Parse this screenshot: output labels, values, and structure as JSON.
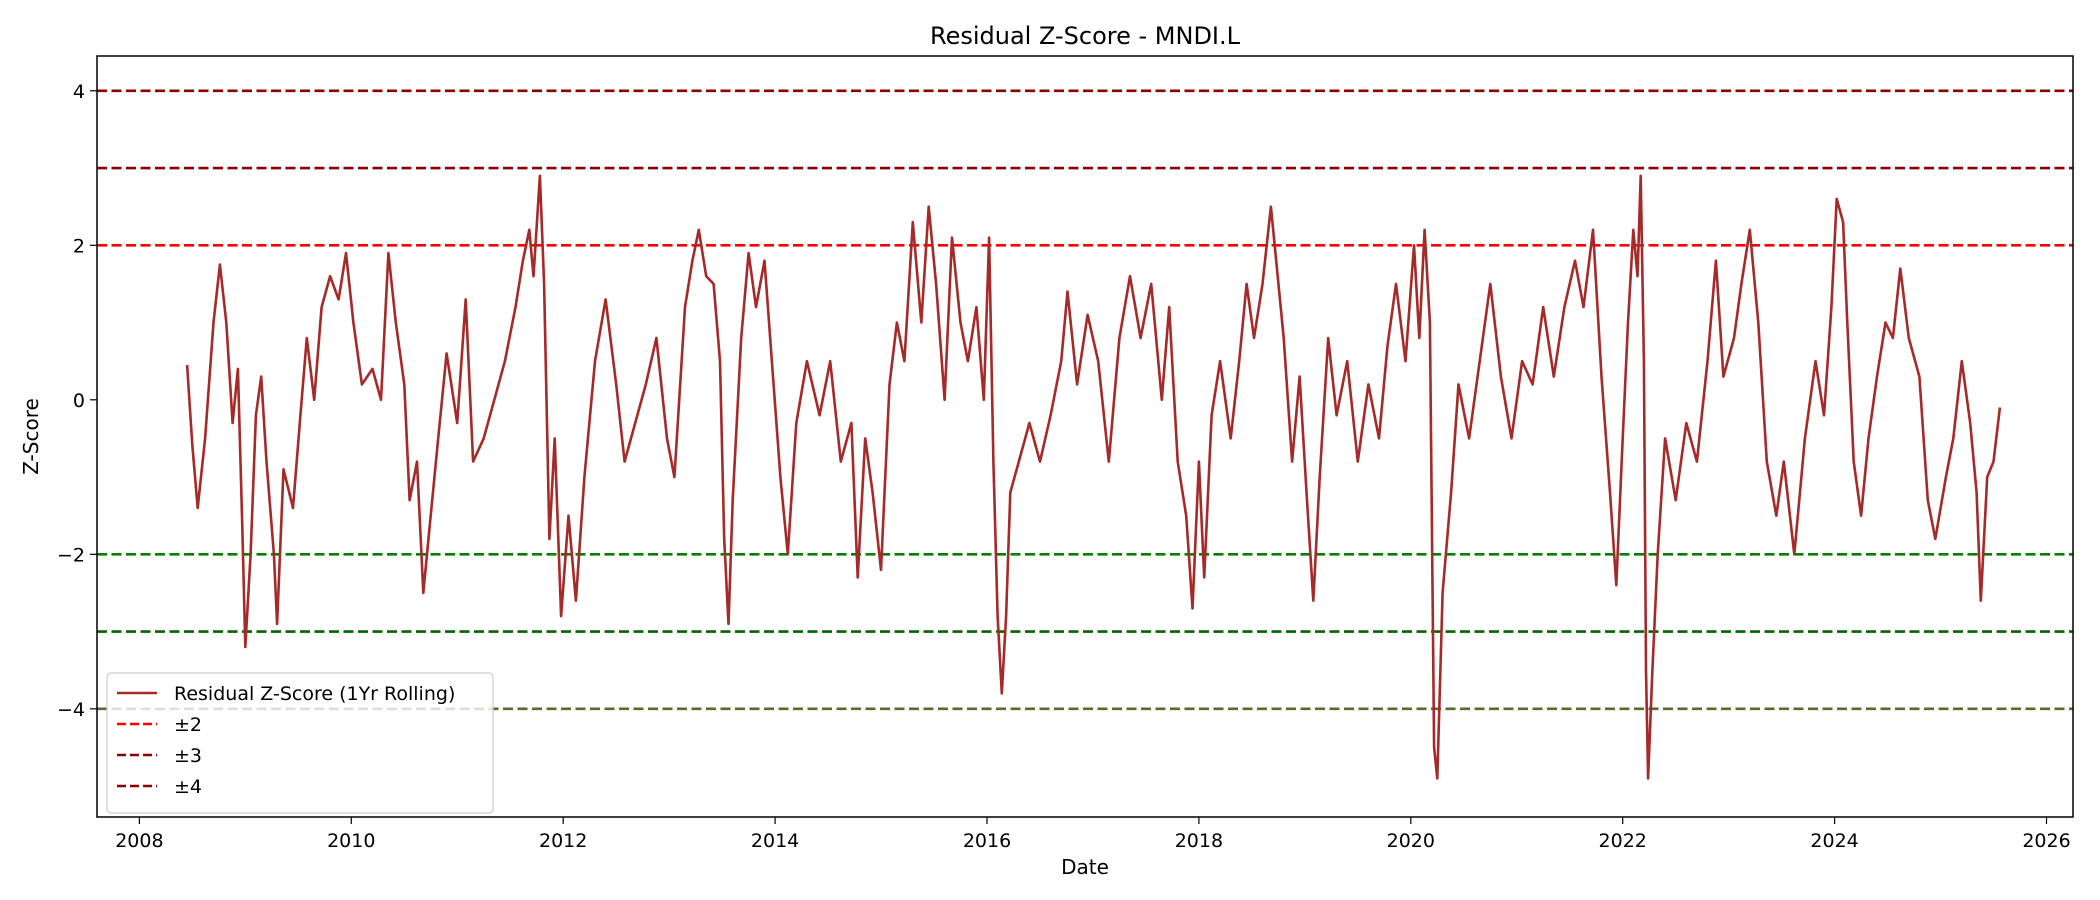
{
  "chart_data": {
    "type": "line",
    "title": "Residual Z-Score - MNDI.L",
    "xlabel": "Date",
    "ylabel": "Z-Score",
    "xlim": [
      2007.6,
      2026.25
    ],
    "ylim": [
      -5.4,
      4.45
    ],
    "x_ticks": [
      2008,
      2010,
      2012,
      2014,
      2016,
      2018,
      2020,
      2022,
      2024,
      2026
    ],
    "y_ticks": [
      4,
      2,
      0,
      -2,
      -4
    ],
    "y_tick_labels": [
      "4",
      "2",
      "0",
      "−2",
      "−4"
    ],
    "grid": false,
    "legend_position": "lower-left",
    "series": [
      {
        "name": "Residual Z-Score (1Yr Rolling)",
        "color": "#a52a2a",
        "style": "solid",
        "points": [
          [
            2008.45,
            0.45
          ],
          [
            2008.5,
            -0.6
          ],
          [
            2008.55,
            -1.4
          ],
          [
            2008.62,
            -0.5
          ],
          [
            2008.7,
            1.0
          ],
          [
            2008.76,
            1.75
          ],
          [
            2008.82,
            1.0
          ],
          [
            2008.88,
            -0.3
          ],
          [
            2008.93,
            0.4
          ],
          [
            2008.97,
            -1.6
          ],
          [
            2009.0,
            -3.2
          ],
          [
            2009.05,
            -2.0
          ],
          [
            2009.1,
            -0.2
          ],
          [
            2009.15,
            0.3
          ],
          [
            2009.2,
            -0.8
          ],
          [
            2009.27,
            -2.0
          ],
          [
            2009.3,
            -2.9
          ],
          [
            2009.36,
            -0.9
          ],
          [
            2009.45,
            -1.4
          ],
          [
            2009.52,
            -0.2
          ],
          [
            2009.58,
            0.8
          ],
          [
            2009.65,
            0.0
          ],
          [
            2009.72,
            1.2
          ],
          [
            2009.8,
            1.6
          ],
          [
            2009.88,
            1.3
          ],
          [
            2009.95,
            1.9
          ],
          [
            2010.02,
            1.0
          ],
          [
            2010.1,
            0.2
          ],
          [
            2010.2,
            0.4
          ],
          [
            2010.28,
            0.0
          ],
          [
            2010.35,
            1.9
          ],
          [
            2010.42,
            1.0
          ],
          [
            2010.5,
            0.2
          ],
          [
            2010.55,
            -1.3
          ],
          [
            2010.62,
            -0.8
          ],
          [
            2010.68,
            -2.5
          ],
          [
            2010.75,
            -1.5
          ],
          [
            2010.82,
            -0.5
          ],
          [
            2010.9,
            0.6
          ],
          [
            2011.0,
            -0.3
          ],
          [
            2011.08,
            1.3
          ],
          [
            2011.15,
            -0.8
          ],
          [
            2011.25,
            -0.5
          ],
          [
            2011.35,
            0.0
          ],
          [
            2011.45,
            0.5
          ],
          [
            2011.55,
            1.2
          ],
          [
            2011.62,
            1.8
          ],
          [
            2011.68,
            2.2
          ],
          [
            2011.72,
            1.6
          ],
          [
            2011.78,
            2.9
          ],
          [
            2011.82,
            1.5
          ],
          [
            2011.87,
            -1.8
          ],
          [
            2011.92,
            -0.5
          ],
          [
            2011.98,
            -2.8
          ],
          [
            2012.05,
            -1.5
          ],
          [
            2012.12,
            -2.6
          ],
          [
            2012.2,
            -1.0
          ],
          [
            2012.3,
            0.5
          ],
          [
            2012.4,
            1.3
          ],
          [
            2012.5,
            0.2
          ],
          [
            2012.58,
            -0.8
          ],
          [
            2012.68,
            -0.3
          ],
          [
            2012.78,
            0.2
          ],
          [
            2012.88,
            0.8
          ],
          [
            2012.98,
            -0.5
          ],
          [
            2013.05,
            -1.0
          ],
          [
            2013.15,
            1.2
          ],
          [
            2013.22,
            1.8
          ],
          [
            2013.28,
            2.2
          ],
          [
            2013.35,
            1.6
          ],
          [
            2013.42,
            1.5
          ],
          [
            2013.48,
            0.5
          ],
          [
            2013.52,
            -1.8
          ],
          [
            2013.56,
            -2.9
          ],
          [
            2013.6,
            -1.3
          ],
          [
            2013.68,
            0.8
          ],
          [
            2013.75,
            1.9
          ],
          [
            2013.82,
            1.2
          ],
          [
            2013.9,
            1.8
          ],
          [
            2013.98,
            0.3
          ],
          [
            2014.05,
            -1.0
          ],
          [
            2014.12,
            -2.0
          ],
          [
            2014.2,
            -0.3
          ],
          [
            2014.3,
            0.5
          ],
          [
            2014.42,
            -0.2
          ],
          [
            2014.52,
            0.5
          ],
          [
            2014.62,
            -0.8
          ],
          [
            2014.72,
            -0.3
          ],
          [
            2014.78,
            -2.3
          ],
          [
            2014.85,
            -0.5
          ],
          [
            2014.92,
            -1.2
          ],
          [
            2015.0,
            -2.2
          ],
          [
            2015.08,
            0.2
          ],
          [
            2015.15,
            1.0
          ],
          [
            2015.22,
            0.5
          ],
          [
            2015.3,
            2.3
          ],
          [
            2015.38,
            1.0
          ],
          [
            2015.45,
            2.5
          ],
          [
            2015.52,
            1.5
          ],
          [
            2015.6,
            0.0
          ],
          [
            2015.67,
            2.1
          ],
          [
            2015.75,
            1.0
          ],
          [
            2015.82,
            0.5
          ],
          [
            2015.9,
            1.2
          ],
          [
            2015.97,
            0.0
          ],
          [
            2016.02,
            2.1
          ],
          [
            2016.06,
            -0.8
          ],
          [
            2016.1,
            -2.8
          ],
          [
            2016.14,
            -3.8
          ],
          [
            2016.18,
            -2.8
          ],
          [
            2016.22,
            -1.2
          ],
          [
            2016.3,
            -0.8
          ],
          [
            2016.4,
            -0.3
          ],
          [
            2016.5,
            -0.8
          ],
          [
            2016.6,
            -0.2
          ],
          [
            2016.7,
            0.5
          ],
          [
            2016.76,
            1.4
          ],
          [
            2016.85,
            0.2
          ],
          [
            2016.95,
            1.1
          ],
          [
            2017.05,
            0.5
          ],
          [
            2017.15,
            -0.8
          ],
          [
            2017.25,
            0.8
          ],
          [
            2017.35,
            1.6
          ],
          [
            2017.45,
            0.8
          ],
          [
            2017.55,
            1.5
          ],
          [
            2017.65,
            0.0
          ],
          [
            2017.72,
            1.2
          ],
          [
            2017.8,
            -0.8
          ],
          [
            2017.88,
            -1.5
          ],
          [
            2017.94,
            -2.7
          ],
          [
            2018.0,
            -0.8
          ],
          [
            2018.05,
            -2.3
          ],
          [
            2018.12,
            -0.2
          ],
          [
            2018.2,
            0.5
          ],
          [
            2018.3,
            -0.5
          ],
          [
            2018.38,
            0.5
          ],
          [
            2018.45,
            1.5
          ],
          [
            2018.52,
            0.8
          ],
          [
            2018.6,
            1.5
          ],
          [
            2018.68,
            2.5
          ],
          [
            2018.73,
            1.8
          ],
          [
            2018.8,
            0.8
          ],
          [
            2018.88,
            -0.8
          ],
          [
            2018.95,
            0.3
          ],
          [
            2019.02,
            -1.3
          ],
          [
            2019.08,
            -2.6
          ],
          [
            2019.14,
            -1.0
          ],
          [
            2019.22,
            0.8
          ],
          [
            2019.3,
            -0.2
          ],
          [
            2019.4,
            0.5
          ],
          [
            2019.5,
            -0.8
          ],
          [
            2019.6,
            0.2
          ],
          [
            2019.7,
            -0.5
          ],
          [
            2019.78,
            0.7
          ],
          [
            2019.86,
            1.5
          ],
          [
            2019.95,
            0.5
          ],
          [
            2020.03,
            2.0
          ],
          [
            2020.08,
            0.8
          ],
          [
            2020.13,
            2.2
          ],
          [
            2020.18,
            1.0
          ],
          [
            2020.22,
            -4.5
          ],
          [
            2020.25,
            -4.9
          ],
          [
            2020.3,
            -2.5
          ],
          [
            2020.38,
            -1.2
          ],
          [
            2020.45,
            0.2
          ],
          [
            2020.55,
            -0.5
          ],
          [
            2020.65,
            0.5
          ],
          [
            2020.75,
            1.5
          ],
          [
            2020.85,
            0.3
          ],
          [
            2020.95,
            -0.5
          ],
          [
            2021.05,
            0.5
          ],
          [
            2021.15,
            0.2
          ],
          [
            2021.25,
            1.2
          ],
          [
            2021.35,
            0.3
          ],
          [
            2021.45,
            1.2
          ],
          [
            2021.55,
            1.8
          ],
          [
            2021.63,
            1.2
          ],
          [
            2021.72,
            2.2
          ],
          [
            2021.8,
            0.3
          ],
          [
            2021.88,
            -1.2
          ],
          [
            2021.94,
            -2.4
          ],
          [
            2022.0,
            -0.5
          ],
          [
            2022.05,
            1.0
          ],
          [
            2022.1,
            2.2
          ],
          [
            2022.14,
            1.6
          ],
          [
            2022.17,
            2.9
          ],
          [
            2022.2,
            0.5
          ],
          [
            2022.22,
            -3.5
          ],
          [
            2022.24,
            -4.9
          ],
          [
            2022.28,
            -3.5
          ],
          [
            2022.33,
            -2.0
          ],
          [
            2022.4,
            -0.5
          ],
          [
            2022.5,
            -1.3
          ],
          [
            2022.6,
            -0.3
          ],
          [
            2022.7,
            -0.8
          ],
          [
            2022.8,
            0.5
          ],
          [
            2022.88,
            1.8
          ],
          [
            2022.95,
            0.3
          ],
          [
            2023.05,
            0.8
          ],
          [
            2023.12,
            1.5
          ],
          [
            2023.2,
            2.2
          ],
          [
            2023.28,
            1.0
          ],
          [
            2023.36,
            -0.8
          ],
          [
            2023.45,
            -1.5
          ],
          [
            2023.52,
            -0.8
          ],
          [
            2023.62,
            -2.0
          ],
          [
            2023.72,
            -0.5
          ],
          [
            2023.82,
            0.5
          ],
          [
            2023.9,
            -0.2
          ],
          [
            2023.97,
            1.2
          ],
          [
            2024.02,
            2.6
          ],
          [
            2024.08,
            2.3
          ],
          [
            2024.12,
            1.0
          ],
          [
            2024.18,
            -0.8
          ],
          [
            2024.25,
            -1.5
          ],
          [
            2024.32,
            -0.5
          ],
          [
            2024.4,
            0.3
          ],
          [
            2024.48,
            1.0
          ],
          [
            2024.55,
            0.8
          ],
          [
            2024.62,
            1.7
          ],
          [
            2024.7,
            0.8
          ],
          [
            2024.8,
            0.3
          ],
          [
            2024.88,
            -1.3
          ],
          [
            2024.95,
            -1.8
          ],
          [
            2025.05,
            -1.0
          ],
          [
            2025.12,
            -0.5
          ],
          [
            2025.2,
            0.5
          ],
          [
            2025.28,
            -0.3
          ],
          [
            2025.34,
            -1.2
          ],
          [
            2025.38,
            -2.6
          ],
          [
            2025.44,
            -1.0
          ],
          [
            2025.5,
            -0.8
          ],
          [
            2025.56,
            -0.1
          ]
        ]
      }
    ],
    "reference_lines": [
      {
        "y": 2,
        "color": "#ff0000",
        "style": "dashed",
        "legend": "±2"
      },
      {
        "y": 3,
        "color": "#8b0000",
        "style": "dashed",
        "legend": "±3"
      },
      {
        "y": 4,
        "color": "#8b0000",
        "style": "dashed",
        "legend": "±4"
      },
      {
        "y": -2,
        "color": "#008000",
        "style": "dashed"
      },
      {
        "y": -3,
        "color": "#006400",
        "style": "dashed"
      },
      {
        "y": -4,
        "color": "#556b2f",
        "style": "dashed"
      }
    ]
  }
}
